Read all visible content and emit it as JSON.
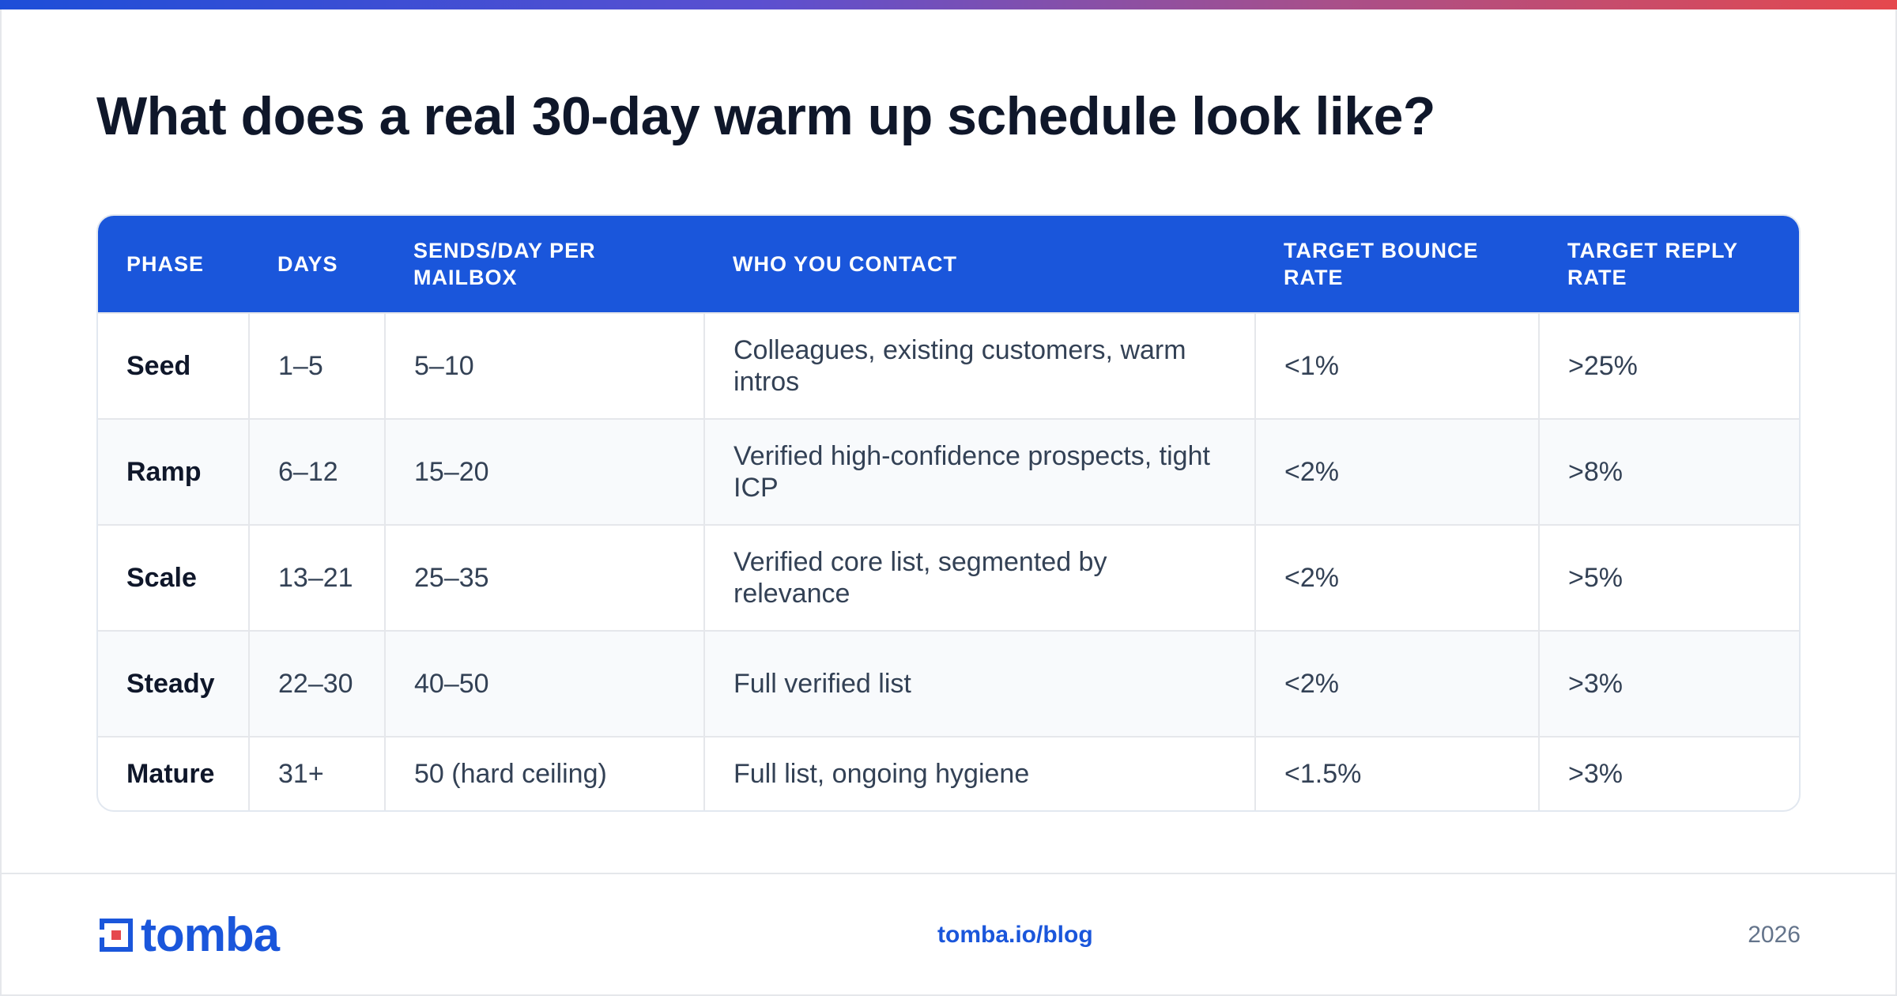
{
  "title": "What does a real 30-day warm up schedule look like?",
  "table": {
    "headers": [
      "PHASE",
      "DAYS",
      "SENDS/DAY PER MAILBOX",
      "WHO YOU CONTACT",
      "TARGET BOUNCE RATE",
      "TARGET REPLY RATE"
    ],
    "rows": [
      [
        "Seed",
        "1–5",
        "5–10",
        "Colleagues, existing customers, warm intros",
        "<1%",
        ">25%"
      ],
      [
        "Ramp",
        "6–12",
        "15–20",
        "Verified high-confidence prospects, tight ICP",
        "<2%",
        ">8%"
      ],
      [
        "Scale",
        "13–21",
        "25–35",
        "Verified core list, segmented by relevance",
        "<2%",
        ">5%"
      ],
      [
        "Steady",
        "22–30",
        "40–50",
        "Full verified list",
        "<2%",
        ">3%"
      ],
      [
        "Mature",
        "31+",
        "50 (hard ceiling)",
        "Full list, ongoing hygiene",
        "<1.5%",
        ">3%"
      ]
    ]
  },
  "footer": {
    "brand": "tomba",
    "link": "tomba.io/blog",
    "year": "2026"
  },
  "colors": {
    "accent": "#1a56db",
    "header_bg": "#1a56db",
    "title": "#0f172a",
    "stripe": "#f8fafc",
    "logo_red": "#e5484d"
  },
  "icons": {
    "logo": "tomba-logo-icon"
  }
}
